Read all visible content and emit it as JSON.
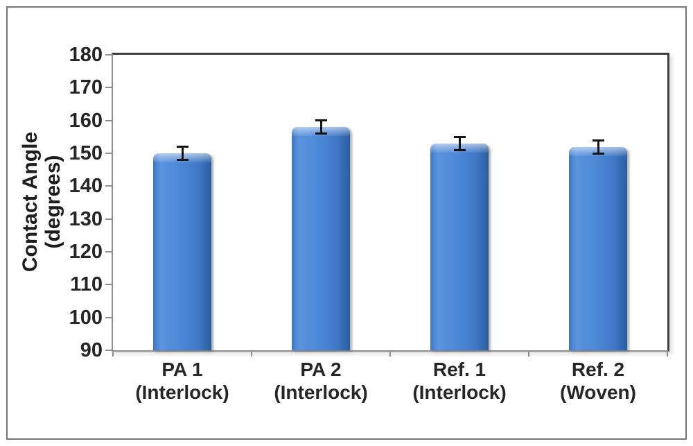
{
  "figure": {
    "background": "#ffffff",
    "outer_border_color": "#757575"
  },
  "chart_data": {
    "type": "bar",
    "title": "",
    "y_axis": {
      "label_lines": [
        "Contact Angle",
        "(degrees)"
      ],
      "min": 90,
      "max": 180,
      "tick_step": 10,
      "ticks": [
        180,
        170,
        160,
        150,
        140,
        130,
        120,
        110,
        100,
        90
      ]
    },
    "categories": [
      {
        "line1": "PA 1",
        "line2": "(Interlock)"
      },
      {
        "line1": "PA 2",
        "line2": "(Interlock)"
      },
      {
        "line1": "Ref. 1",
        "line2": "(Interlock)"
      },
      {
        "line1": "Ref. 2",
        "line2": "(Woven)"
      }
    ],
    "series": [
      {
        "name": "Contact Angle",
        "values": [
          150,
          158,
          153,
          152
        ],
        "error_bars": [
          2,
          2,
          2,
          2
        ]
      }
    ],
    "legend": "none",
    "grid": "off",
    "colors": {
      "bar_fill": "#4a86d6",
      "bar_fill_light": "#7fb0ea",
      "bar_fill_dark": "#2a5a99",
      "error_bar": "#141414",
      "axis_line": "#8e8e8e",
      "frame_line": "#3f3f3f",
      "text": "#262626"
    }
  }
}
